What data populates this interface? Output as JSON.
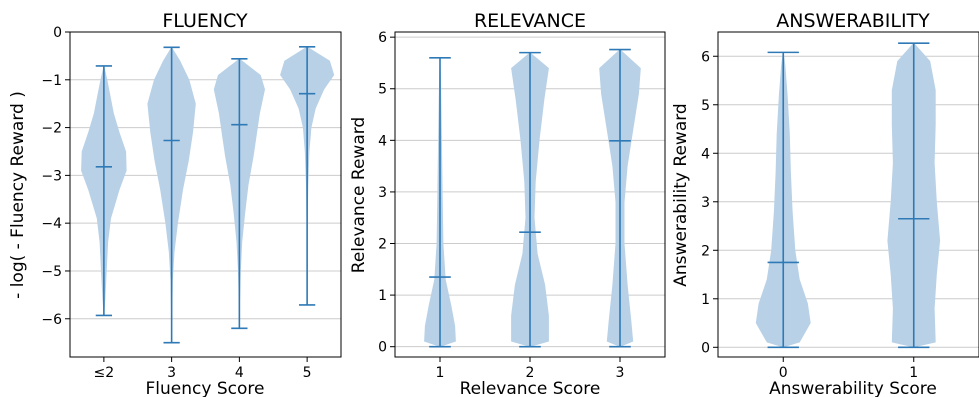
{
  "colors": {
    "violin_fill": "#b8d1e7",
    "line": "#2f7ab6",
    "grid": "#cccccc",
    "axis": "#000000"
  },
  "chart_data": [
    {
      "type": "violin",
      "title": "FLUENCY",
      "xlabel": "Fluency Score",
      "ylabel": "- log( - Fluency Reward )",
      "ylim": [
        -6.8,
        0
      ],
      "yticks": [
        0,
        -1,
        -2,
        -3,
        -4,
        -5,
        -6
      ],
      "ytick_labels": [
        "0",
        "−1",
        "−2",
        "−3",
        "−4",
        "−5",
        "−6"
      ],
      "grid": true,
      "categories": [
        "≤2",
        "3",
        "4",
        "5"
      ],
      "violins": [
        {
          "min": -5.93,
          "max": -0.71,
          "median": -2.82,
          "profile": [
            [
              -5.93,
              0.01
            ],
            [
              -5.6,
              0.05
            ],
            [
              -5.0,
              0.1
            ],
            [
              -4.4,
              0.15
            ],
            [
              -3.9,
              0.25
            ],
            [
              -3.3,
              0.55
            ],
            [
              -2.9,
              0.8
            ],
            [
              -2.5,
              0.78
            ],
            [
              -2.1,
              0.55
            ],
            [
              -1.7,
              0.35
            ],
            [
              -1.3,
              0.22
            ],
            [
              -1.0,
              0.12
            ],
            [
              -0.71,
              0.01
            ]
          ]
        },
        {
          "min": -6.5,
          "max": -0.32,
          "median": -2.27,
          "profile": [
            [
              -6.5,
              0.01
            ],
            [
              -6.0,
              0.02
            ],
            [
              -5.2,
              0.04
            ],
            [
              -4.6,
              0.1
            ],
            [
              -4.0,
              0.22
            ],
            [
              -3.3,
              0.4
            ],
            [
              -2.7,
              0.6
            ],
            [
              -2.1,
              0.75
            ],
            [
              -1.5,
              0.85
            ],
            [
              -1.0,
              0.62
            ],
            [
              -0.6,
              0.3
            ],
            [
              -0.32,
              0.01
            ]
          ]
        },
        {
          "min": -6.2,
          "max": -0.56,
          "median": -1.94,
          "profile": [
            [
              -6.2,
              0.01
            ],
            [
              -5.7,
              0.02
            ],
            [
              -5.0,
              0.05
            ],
            [
              -4.4,
              0.1
            ],
            [
              -3.8,
              0.2
            ],
            [
              -3.2,
              0.32
            ],
            [
              -2.6,
              0.5
            ],
            [
              -2.2,
              0.6
            ],
            [
              -1.7,
              0.72
            ],
            [
              -1.2,
              0.9
            ],
            [
              -0.9,
              0.75
            ],
            [
              -0.56,
              0.01
            ]
          ]
        },
        {
          "min": -5.71,
          "max": -0.31,
          "median": -1.29,
          "profile": [
            [
              -5.71,
              0.01
            ],
            [
              -5.0,
              0.01
            ],
            [
              -4.0,
              0.02
            ],
            [
              -3.2,
              0.04
            ],
            [
              -2.5,
              0.08
            ],
            [
              -2.0,
              0.15
            ],
            [
              -1.6,
              0.3
            ],
            [
              -1.2,
              0.6
            ],
            [
              -0.9,
              0.95
            ],
            [
              -0.6,
              0.8
            ],
            [
              -0.31,
              0.01
            ]
          ]
        }
      ]
    },
    {
      "type": "violin",
      "title": "RELEVANCE",
      "xlabel": "Relevance Score",
      "ylabel": "Relevance Reward",
      "ylim": [
        -0.2,
        6.1
      ],
      "yticks": [
        0,
        1,
        2,
        3,
        4,
        5,
        6
      ],
      "ytick_labels": [
        "0",
        "1",
        "2",
        "3",
        "4",
        "5",
        "6"
      ],
      "grid": true,
      "categories": [
        "1",
        "2",
        "3"
      ],
      "violins": [
        {
          "min": 0.0,
          "max": 5.6,
          "median": 1.35,
          "profile": [
            [
              0.0,
              0.01
            ],
            [
              0.1,
              0.42
            ],
            [
              0.4,
              0.4
            ],
            [
              0.8,
              0.3
            ],
            [
              1.3,
              0.15
            ],
            [
              2.0,
              0.09
            ],
            [
              3.0,
              0.07
            ],
            [
              4.0,
              0.05
            ],
            [
              5.0,
              0.03
            ],
            [
              5.6,
              0.01
            ]
          ]
        },
        {
          "min": 0.0,
          "max": 5.7,
          "median": 2.22,
          "profile": [
            [
              0.0,
              0.01
            ],
            [
              0.1,
              0.5
            ],
            [
              0.6,
              0.5
            ],
            [
              1.2,
              0.4
            ],
            [
              1.8,
              0.2
            ],
            [
              2.5,
              0.12
            ],
            [
              3.2,
              0.15
            ],
            [
              4.0,
              0.25
            ],
            [
              4.8,
              0.38
            ],
            [
              5.4,
              0.5
            ],
            [
              5.7,
              0.01
            ]
          ]
        },
        {
          "min": 0.0,
          "max": 5.76,
          "median": 3.99,
          "profile": [
            [
              0.0,
              0.01
            ],
            [
              0.1,
              0.35
            ],
            [
              0.5,
              0.3
            ],
            [
              1.2,
              0.2
            ],
            [
              2.0,
              0.12
            ],
            [
              2.8,
              0.12
            ],
            [
              3.5,
              0.2
            ],
            [
              4.2,
              0.35
            ],
            [
              4.9,
              0.5
            ],
            [
              5.4,
              0.55
            ],
            [
              5.76,
              0.01
            ]
          ]
        }
      ]
    },
    {
      "type": "violin",
      "title": "ANSWERABILITY",
      "xlabel": "Answerability Score",
      "ylabel": "Answerability Reward",
      "ylim": [
        -0.2,
        6.5
      ],
      "yticks": [
        0,
        1,
        2,
        3,
        4,
        5,
        6
      ],
      "ytick_labels": [
        "0",
        "1",
        "2",
        "3",
        "4",
        "5",
        "6"
      ],
      "grid": true,
      "categories": [
        "0",
        "1"
      ],
      "violins": [
        {
          "min": 0.0,
          "max": 6.08,
          "median": 1.75,
          "profile": [
            [
              0.0,
              0.01
            ],
            [
              0.1,
              0.3
            ],
            [
              0.5,
              0.5
            ],
            [
              0.9,
              0.45
            ],
            [
              1.4,
              0.3
            ],
            [
              2.0,
              0.22
            ],
            [
              2.8,
              0.17
            ],
            [
              3.6,
              0.14
            ],
            [
              4.4,
              0.12
            ],
            [
              5.2,
              0.08
            ],
            [
              5.8,
              0.04
            ],
            [
              6.08,
              0.01
            ]
          ]
        },
        {
          "min": 0.0,
          "max": 6.27,
          "median": 2.65,
          "profile": [
            [
              0.0,
              0.01
            ],
            [
              0.1,
              0.4
            ],
            [
              0.8,
              0.38
            ],
            [
              1.5,
              0.42
            ],
            [
              2.2,
              0.48
            ],
            [
              3.0,
              0.42
            ],
            [
              3.8,
              0.38
            ],
            [
              4.6,
              0.4
            ],
            [
              5.3,
              0.4
            ],
            [
              5.9,
              0.3
            ],
            [
              6.27,
              0.01
            ]
          ]
        }
      ]
    }
  ]
}
